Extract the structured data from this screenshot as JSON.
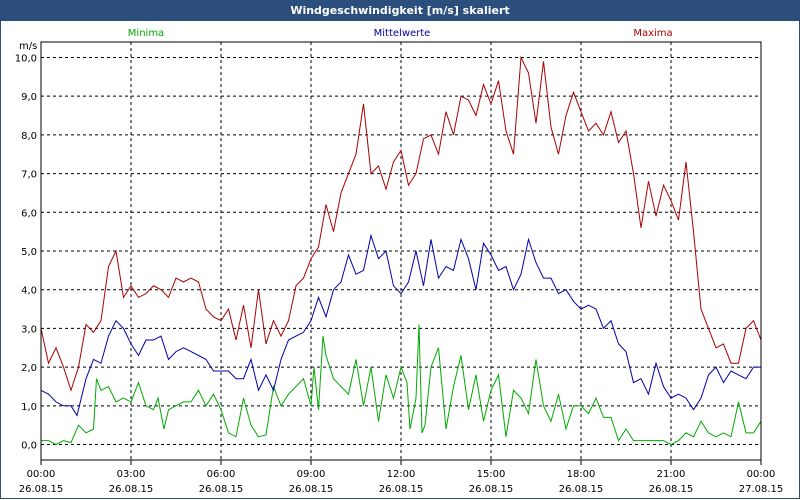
{
  "window": {
    "title": "Windgeschwindigkeit [m/s] skaliert"
  },
  "colors": {
    "title_bar": "#2b4e7c",
    "minima": "#00aa00",
    "mittelwerte": "#0000aa",
    "maxima": "#aa0000",
    "grid": "#000000"
  },
  "chart_data": {
    "type": "line",
    "title": "Windgeschwindigkeit [m/s] skaliert",
    "ylabel": "m/s",
    "xlabel": "",
    "ylim": [
      -0.4,
      10.4
    ],
    "xlim": [
      0,
      24
    ],
    "grid": true,
    "legend_position": "top",
    "x_tick_positions": [
      0,
      3,
      6,
      9,
      12,
      15,
      18,
      21,
      24
    ],
    "x_ticks": [
      {
        "time": "00:00",
        "date": "26.08.15"
      },
      {
        "time": "03:00",
        "date": "26.08.15"
      },
      {
        "time": "06:00",
        "date": "26.08.15"
      },
      {
        "time": "09:00",
        "date": "26.08.15"
      },
      {
        "time": "12:00",
        "date": "26.08.15"
      },
      {
        "time": "15:00",
        "date": "26.08.15"
      },
      {
        "time": "18:00",
        "date": "26.08.15"
      },
      {
        "time": "21:00",
        "date": "26.08.15"
      },
      {
        "time": "00:00",
        "date": "27.08.15"
      }
    ],
    "y_ticks": [
      0.0,
      1.0,
      2.0,
      3.0,
      4.0,
      5.0,
      6.0,
      7.0,
      8.0,
      9.0,
      10.0
    ],
    "y_tick_labels": [
      "0,0",
      "1,0",
      "2,0",
      "3,0",
      "4,0",
      "5,0",
      "6,0",
      "7,0",
      "8,0",
      "9,0",
      "10,0"
    ],
    "series": [
      {
        "name": "Minima",
        "color": "#00aa00",
        "points": [
          [
            0.0,
            0.1
          ],
          [
            0.25,
            0.1
          ],
          [
            0.5,
            0.0
          ],
          [
            0.75,
            0.1
          ],
          [
            1.0,
            0.05
          ],
          [
            1.25,
            0.5
          ],
          [
            1.5,
            0.3
          ],
          [
            1.75,
            0.4
          ],
          [
            1.85,
            1.7
          ],
          [
            2.0,
            1.4
          ],
          [
            2.25,
            1.5
          ],
          [
            2.5,
            1.1
          ],
          [
            2.75,
            1.2
          ],
          [
            3.0,
            1.1
          ],
          [
            3.25,
            1.6
          ],
          [
            3.5,
            1.0
          ],
          [
            3.75,
            0.9
          ],
          [
            3.9,
            1.2
          ],
          [
            4.1,
            0.4
          ],
          [
            4.25,
            0.9
          ],
          [
            4.5,
            1.0
          ],
          [
            4.75,
            1.1
          ],
          [
            5.0,
            1.1
          ],
          [
            5.25,
            1.4
          ],
          [
            5.5,
            1.0
          ],
          [
            5.75,
            1.3
          ],
          [
            6.0,
            0.9
          ],
          [
            6.25,
            0.3
          ],
          [
            6.5,
            0.2
          ],
          [
            6.75,
            1.2
          ],
          [
            7.0,
            0.5
          ],
          [
            7.25,
            0.2
          ],
          [
            7.5,
            0.25
          ],
          [
            7.75,
            1.5
          ],
          [
            8.0,
            1.0
          ],
          [
            8.25,
            1.3
          ],
          [
            8.5,
            1.5
          ],
          [
            8.75,
            1.7
          ],
          [
            9.0,
            1.0
          ],
          [
            9.1,
            2.0
          ],
          [
            9.25,
            0.9
          ],
          [
            9.4,
            2.8
          ],
          [
            9.5,
            2.3
          ],
          [
            9.75,
            1.7
          ],
          [
            10.0,
            1.5
          ],
          [
            10.25,
            1.3
          ],
          [
            10.5,
            2.2
          ],
          [
            10.75,
            1.0
          ],
          [
            11.0,
            2.0
          ],
          [
            11.25,
            0.6
          ],
          [
            11.5,
            1.8
          ],
          [
            11.75,
            1.2
          ],
          [
            12.0,
            2.0
          ],
          [
            12.2,
            1.6
          ],
          [
            12.3,
            0.4
          ],
          [
            12.5,
            1.2
          ],
          [
            12.6,
            3.1
          ],
          [
            12.7,
            0.3
          ],
          [
            12.8,
            0.5
          ],
          [
            13.0,
            2.0
          ],
          [
            13.25,
            2.5
          ],
          [
            13.5,
            0.4
          ],
          [
            13.75,
            1.5
          ],
          [
            14.0,
            2.3
          ],
          [
            14.25,
            0.9
          ],
          [
            14.5,
            1.8
          ],
          [
            14.75,
            0.6
          ],
          [
            15.0,
            1.4
          ],
          [
            15.25,
            1.8
          ],
          [
            15.5,
            0.2
          ],
          [
            15.75,
            1.4
          ],
          [
            16.0,
            1.2
          ],
          [
            16.25,
            0.8
          ],
          [
            16.5,
            2.2
          ],
          [
            16.75,
            1.0
          ],
          [
            17.0,
            0.6
          ],
          [
            17.25,
            1.3
          ],
          [
            17.5,
            0.4
          ],
          [
            17.75,
            1.0
          ],
          [
            18.0,
            1.0
          ],
          [
            18.25,
            0.8
          ],
          [
            18.5,
            1.2
          ],
          [
            18.75,
            0.7
          ],
          [
            19.0,
            0.7
          ],
          [
            19.25,
            0.1
          ],
          [
            19.5,
            0.4
          ],
          [
            19.75,
            0.1
          ],
          [
            20.0,
            0.1
          ],
          [
            20.5,
            0.1
          ],
          [
            20.75,
            0.1
          ],
          [
            21.0,
            0.0
          ],
          [
            21.25,
            0.1
          ],
          [
            21.5,
            0.3
          ],
          [
            21.75,
            0.2
          ],
          [
            22.0,
            0.6
          ],
          [
            22.25,
            0.3
          ],
          [
            22.5,
            0.2
          ],
          [
            22.75,
            0.3
          ],
          [
            23.0,
            0.2
          ],
          [
            23.25,
            1.1
          ],
          [
            23.5,
            0.3
          ],
          [
            23.75,
            0.3
          ],
          [
            24.0,
            0.6
          ]
        ]
      },
      {
        "name": "Mittelwerte",
        "color": "#0000aa",
        "points": [
          [
            0.0,
            1.4
          ],
          [
            0.25,
            1.3
          ],
          [
            0.5,
            1.1
          ],
          [
            0.75,
            1.0
          ],
          [
            1.0,
            1.0
          ],
          [
            1.2,
            0.75
          ],
          [
            1.5,
            1.7
          ],
          [
            1.75,
            2.2
          ],
          [
            2.0,
            2.1
          ],
          [
            2.25,
            2.8
          ],
          [
            2.5,
            3.2
          ],
          [
            2.75,
            3.0
          ],
          [
            3.0,
            2.6
          ],
          [
            3.25,
            2.3
          ],
          [
            3.5,
            2.7
          ],
          [
            3.75,
            2.7
          ],
          [
            4.0,
            2.8
          ],
          [
            4.25,
            2.2
          ],
          [
            4.5,
            2.4
          ],
          [
            4.75,
            2.5
          ],
          [
            5.0,
            2.4
          ],
          [
            5.25,
            2.3
          ],
          [
            5.5,
            2.2
          ],
          [
            5.75,
            1.9
          ],
          [
            6.0,
            1.9
          ],
          [
            6.25,
            1.9
          ],
          [
            6.5,
            1.7
          ],
          [
            6.75,
            1.7
          ],
          [
            7.0,
            2.2
          ],
          [
            7.25,
            1.4
          ],
          [
            7.5,
            1.8
          ],
          [
            7.75,
            1.4
          ],
          [
            8.0,
            2.2
          ],
          [
            8.25,
            2.7
          ],
          [
            8.5,
            2.8
          ],
          [
            8.75,
            2.9
          ],
          [
            9.0,
            3.2
          ],
          [
            9.25,
            3.8
          ],
          [
            9.5,
            3.3
          ],
          [
            9.75,
            4.0
          ],
          [
            10.0,
            4.2
          ],
          [
            10.25,
            4.9
          ],
          [
            10.5,
            4.4
          ],
          [
            10.75,
            4.5
          ],
          [
            11.0,
            5.4
          ],
          [
            11.25,
            4.8
          ],
          [
            11.5,
            5.0
          ],
          [
            11.75,
            4.1
          ],
          [
            12.0,
            3.9
          ],
          [
            12.25,
            4.2
          ],
          [
            12.5,
            5.0
          ],
          [
            12.75,
            4.1
          ],
          [
            13.0,
            5.3
          ],
          [
            13.25,
            4.3
          ],
          [
            13.5,
            4.6
          ],
          [
            13.75,
            4.5
          ],
          [
            14.0,
            5.3
          ],
          [
            14.25,
            4.8
          ],
          [
            14.5,
            4.0
          ],
          [
            14.75,
            5.2
          ],
          [
            15.0,
            4.9
          ],
          [
            15.25,
            4.5
          ],
          [
            15.5,
            4.6
          ],
          [
            15.75,
            4.0
          ],
          [
            16.0,
            4.4
          ],
          [
            16.25,
            5.3
          ],
          [
            16.5,
            4.7
          ],
          [
            16.75,
            4.3
          ],
          [
            17.0,
            4.3
          ],
          [
            17.25,
            3.9
          ],
          [
            17.5,
            4.0
          ],
          [
            17.75,
            3.7
          ],
          [
            18.0,
            3.5
          ],
          [
            18.25,
            3.6
          ],
          [
            18.5,
            3.5
          ],
          [
            18.75,
            3.0
          ],
          [
            19.0,
            3.2
          ],
          [
            19.25,
            2.6
          ],
          [
            19.5,
            2.4
          ],
          [
            19.75,
            1.6
          ],
          [
            20.0,
            1.7
          ],
          [
            20.25,
            1.3
          ],
          [
            20.5,
            2.1
          ],
          [
            20.75,
            1.5
          ],
          [
            21.0,
            1.2
          ],
          [
            21.25,
            1.3
          ],
          [
            21.5,
            1.2
          ],
          [
            21.75,
            0.9
          ],
          [
            22.0,
            1.2
          ],
          [
            22.25,
            1.8
          ],
          [
            22.5,
            2.0
          ],
          [
            22.75,
            1.6
          ],
          [
            23.0,
            1.9
          ],
          [
            23.25,
            1.8
          ],
          [
            23.5,
            1.7
          ],
          [
            23.75,
            2.0
          ],
          [
            24.0,
            2.0
          ]
        ]
      },
      {
        "name": "Maxima",
        "color": "#aa0000",
        "points": [
          [
            0.0,
            3.0
          ],
          [
            0.25,
            2.1
          ],
          [
            0.5,
            2.5
          ],
          [
            0.75,
            2.0
          ],
          [
            1.0,
            1.4
          ],
          [
            1.25,
            2.0
          ],
          [
            1.5,
            3.1
          ],
          [
            1.75,
            2.9
          ],
          [
            2.0,
            3.2
          ],
          [
            2.25,
            4.6
          ],
          [
            2.5,
            5.0
          ],
          [
            2.75,
            3.8
          ],
          [
            3.0,
            4.1
          ],
          [
            3.25,
            3.8
          ],
          [
            3.5,
            3.9
          ],
          [
            3.75,
            4.1
          ],
          [
            4.0,
            4.0
          ],
          [
            4.25,
            3.8
          ],
          [
            4.5,
            4.3
          ],
          [
            4.75,
            4.2
          ],
          [
            5.0,
            4.3
          ],
          [
            5.25,
            4.2
          ],
          [
            5.5,
            3.5
          ],
          [
            5.75,
            3.3
          ],
          [
            6.0,
            3.2
          ],
          [
            6.25,
            3.5
          ],
          [
            6.5,
            2.7
          ],
          [
            6.75,
            3.6
          ],
          [
            7.0,
            2.5
          ],
          [
            7.25,
            4.0
          ],
          [
            7.5,
            2.6
          ],
          [
            7.75,
            3.2
          ],
          [
            8.0,
            2.8
          ],
          [
            8.25,
            3.2
          ],
          [
            8.5,
            4.1
          ],
          [
            8.75,
            4.3
          ],
          [
            9.0,
            4.8
          ],
          [
            9.25,
            5.1
          ],
          [
            9.5,
            6.2
          ],
          [
            9.75,
            5.5
          ],
          [
            10.0,
            6.5
          ],
          [
            10.25,
            7.0
          ],
          [
            10.5,
            7.5
          ],
          [
            10.75,
            8.8
          ],
          [
            11.0,
            7.0
          ],
          [
            11.25,
            7.2
          ],
          [
            11.5,
            6.6
          ],
          [
            11.75,
            7.3
          ],
          [
            12.0,
            7.6
          ],
          [
            12.25,
            6.7
          ],
          [
            12.5,
            7.0
          ],
          [
            12.75,
            7.9
          ],
          [
            13.0,
            8.0
          ],
          [
            13.25,
            7.5
          ],
          [
            13.5,
            8.6
          ],
          [
            13.75,
            8.0
          ],
          [
            14.0,
            9.0
          ],
          [
            14.25,
            8.9
          ],
          [
            14.5,
            8.5
          ],
          [
            14.75,
            9.3
          ],
          [
            15.0,
            8.8
          ],
          [
            15.25,
            9.4
          ],
          [
            15.5,
            8.1
          ],
          [
            15.75,
            7.5
          ],
          [
            16.0,
            10.0
          ],
          [
            16.25,
            9.6
          ],
          [
            16.5,
            8.3
          ],
          [
            16.75,
            9.9
          ],
          [
            17.0,
            8.2
          ],
          [
            17.25,
            7.5
          ],
          [
            17.5,
            8.5
          ],
          [
            17.75,
            9.1
          ],
          [
            18.0,
            8.6
          ],
          [
            18.25,
            8.1
          ],
          [
            18.5,
            8.3
          ],
          [
            18.75,
            8.0
          ],
          [
            19.0,
            8.6
          ],
          [
            19.25,
            7.8
          ],
          [
            19.5,
            8.1
          ],
          [
            19.75,
            7.0
          ],
          [
            20.0,
            5.6
          ],
          [
            20.25,
            6.8
          ],
          [
            20.5,
            5.9
          ],
          [
            20.75,
            6.7
          ],
          [
            21.0,
            6.3
          ],
          [
            21.25,
            5.8
          ],
          [
            21.5,
            7.3
          ],
          [
            21.75,
            5.5
          ],
          [
            22.0,
            3.5
          ],
          [
            22.25,
            3.0
          ],
          [
            22.5,
            2.5
          ],
          [
            22.75,
            2.6
          ],
          [
            23.0,
            2.1
          ],
          [
            23.25,
            2.1
          ],
          [
            23.5,
            3.0
          ],
          [
            23.75,
            3.2
          ],
          [
            24.0,
            2.7
          ]
        ]
      }
    ]
  }
}
